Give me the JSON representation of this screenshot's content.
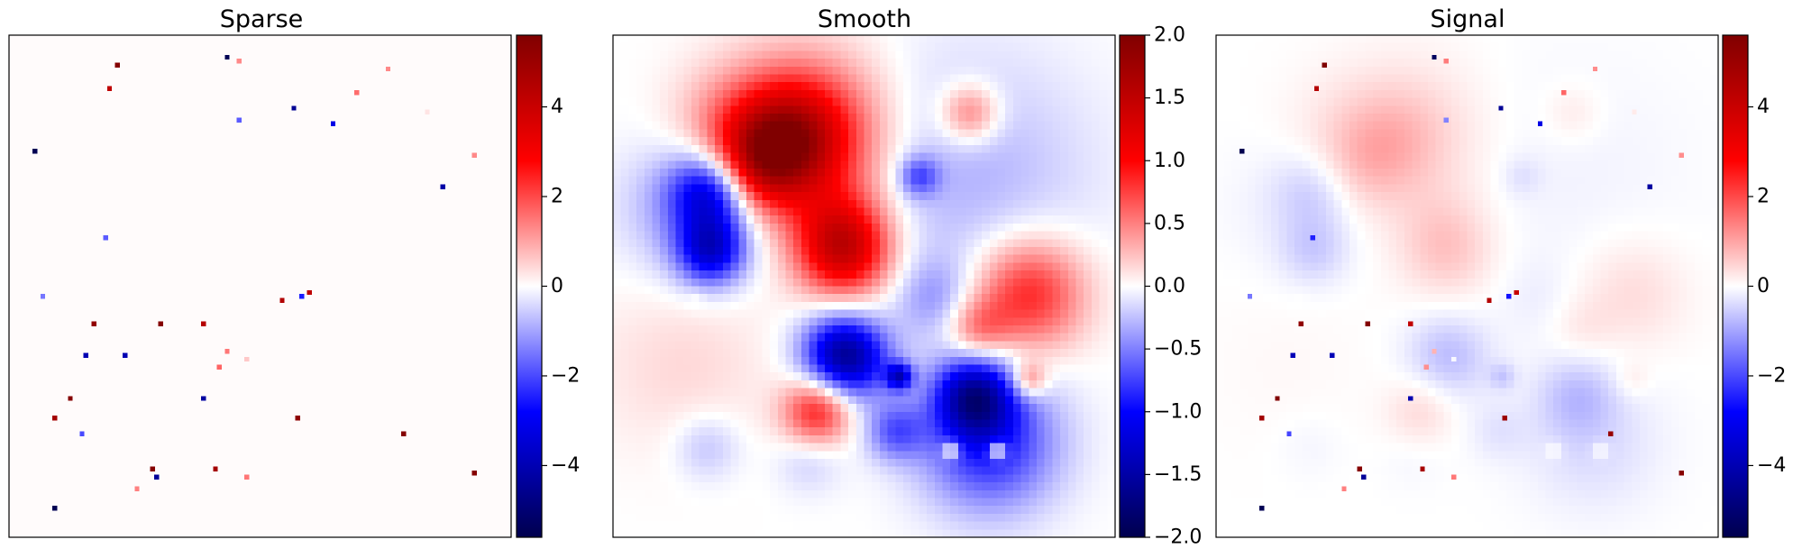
{
  "chart_data": [
    {
      "type": "heatmap",
      "title": "Sparse",
      "colormap": "seismic",
      "clim": [
        -5.6,
        5.6
      ],
      "colorbar_ticks": [
        4,
        2,
        0,
        -2,
        -4
      ],
      "colorbar_tick_labels": [
        "4",
        "2",
        "0",
        "−2",
        "−4"
      ],
      "grid_size": 64,
      "background_value": 0.04,
      "points": [
        {
          "x": 14,
          "y": 4,
          "v": 5.5
        },
        {
          "x": 28,
          "y": 3,
          "v": -5.5
        },
        {
          "x": 29.5,
          "y": 3.5,
          "v": 1.3
        },
        {
          "x": 13,
          "y": 7,
          "v": 4.2
        },
        {
          "x": 48.5,
          "y": 4.5,
          "v": 1.3
        },
        {
          "x": 44.5,
          "y": 7.5,
          "v": 1.6
        },
        {
          "x": 36.5,
          "y": 9.5,
          "v": -4.5
        },
        {
          "x": 29.5,
          "y": 11,
          "v": -1.8
        },
        {
          "x": 41.5,
          "y": 11.5,
          "v": -3.2
        },
        {
          "x": 53.5,
          "y": 10,
          "v": 0.3
        },
        {
          "x": 3.5,
          "y": 15,
          "v": -5.5
        },
        {
          "x": 59.5,
          "y": 15.5,
          "v": 1.3
        },
        {
          "x": 55.5,
          "y": 19.5,
          "v": -4.2
        },
        {
          "x": 12.5,
          "y": 26,
          "v": -1.8
        },
        {
          "x": 4.5,
          "y": 33.5,
          "v": -1.5
        },
        {
          "x": 35,
          "y": 34,
          "v": 4.5
        },
        {
          "x": 37.5,
          "y": 33.5,
          "v": -2.5
        },
        {
          "x": 38.5,
          "y": 33,
          "v": 4.2
        },
        {
          "x": 11,
          "y": 37,
          "v": 5.2
        },
        {
          "x": 19.5,
          "y": 37,
          "v": 5.5
        },
        {
          "x": 25,
          "y": 37,
          "v": 4.4
        },
        {
          "x": 10,
          "y": 41,
          "v": -4.0
        },
        {
          "x": 15,
          "y": 41,
          "v": -4.0
        },
        {
          "x": 28,
          "y": 40.5,
          "v": 1.5
        },
        {
          "x": 30.5,
          "y": 41.5,
          "v": 0.6
        },
        {
          "x": 27,
          "y": 42.5,
          "v": 1.7
        },
        {
          "x": 8,
          "y": 46.5,
          "v": 5.5
        },
        {
          "x": 25,
          "y": 46.5,
          "v": -4.3
        },
        {
          "x": 6,
          "y": 49,
          "v": 4.8
        },
        {
          "x": 37,
          "y": 49,
          "v": 5.3
        },
        {
          "x": 50.5,
          "y": 51,
          "v": 5.5
        },
        {
          "x": 9.5,
          "y": 51,
          "v": -2.0
        },
        {
          "x": 18.5,
          "y": 55.5,
          "v": 5.5
        },
        {
          "x": 26.5,
          "y": 55.5,
          "v": 4.8
        },
        {
          "x": 59.5,
          "y": 56,
          "v": 5.5
        },
        {
          "x": 19,
          "y": 56.5,
          "v": -4.4
        },
        {
          "x": 30.5,
          "y": 56.5,
          "v": 1.5
        },
        {
          "x": 16.5,
          "y": 58,
          "v": 1.4
        },
        {
          "x": 6,
          "y": 60.5,
          "v": -5.5
        }
      ]
    },
    {
      "type": "heatmap",
      "title": "Smooth",
      "colormap": "seismic",
      "clim": [
        -2,
        2
      ],
      "colorbar_ticks": [
        2.0,
        1.5,
        1.0,
        0.5,
        0.0,
        -0.5,
        -1.0,
        -1.5,
        -2.0
      ],
      "colorbar_tick_labels": [
        "2.0",
        "1.5",
        "1.0",
        "0.5",
        "0.0",
        "−0.5",
        "−1.0",
        "−1.5",
        "−2.0"
      ],
      "grid_size": 64,
      "blobs": [
        {
          "x": 24.5,
          "y": 13,
          "a": 1.1,
          "s": 7
        },
        {
          "x": 22,
          "y": 13.5,
          "a": 0.9,
          "s": 4.5
        },
        {
          "x": 18,
          "y": 17,
          "a": 0.8,
          "s": 4
        },
        {
          "x": 14.5,
          "y": 11.5,
          "a": 0.3,
          "s": 5
        },
        {
          "x": 29.5,
          "y": 27.5,
          "a": 1.3,
          "s": 4.2
        },
        {
          "x": 28.5,
          "y": 24,
          "a": 0.3,
          "s": 4
        },
        {
          "x": 45.5,
          "y": 10,
          "a": 0.6,
          "s": 2.6
        },
        {
          "x": 53,
          "y": 33,
          "a": 0.9,
          "s": 5
        },
        {
          "x": 46.5,
          "y": 37.5,
          "a": 0.5,
          "s": 2.8
        },
        {
          "x": 26,
          "y": 48,
          "a": 0.9,
          "s": 3
        },
        {
          "x": 9,
          "y": 42,
          "a": 0.15,
          "s": 8
        },
        {
          "x": 53,
          "y": 44,
          "a": 0.6,
          "s": 1.6
        },
        {
          "x": 12.5,
          "y": 20,
          "a": -1.1,
          "s": 3.5
        },
        {
          "x": 12.5,
          "y": 27.5,
          "a": -1.1,
          "s": 3
        },
        {
          "x": 10,
          "y": 22,
          "a": -0.4,
          "s": 6
        },
        {
          "x": 39,
          "y": 18,
          "a": -0.6,
          "s": 1.8
        },
        {
          "x": 45,
          "y": 18,
          "a": -0.3,
          "s": 11
        },
        {
          "x": 41,
          "y": 33.5,
          "a": -0.35,
          "s": 3.5
        },
        {
          "x": 29,
          "y": 40.5,
          "a": -1.2,
          "s": 3.5
        },
        {
          "x": 31.5,
          "y": 42,
          "a": -0.5,
          "s": 3.5
        },
        {
          "x": 36.5,
          "y": 43.5,
          "a": -1.1,
          "s": 1.2
        },
        {
          "x": 46,
          "y": 46,
          "a": -1.3,
          "s": 3.5
        },
        {
          "x": 48,
          "y": 52,
          "a": -0.9,
          "s": 6
        },
        {
          "x": 36,
          "y": 50.5,
          "a": -0.6,
          "s": 2.6
        },
        {
          "x": 12,
          "y": 52.5,
          "a": -0.25,
          "s": 3
        },
        {
          "x": 25,
          "y": 54,
          "a": -0.2,
          "s": 3
        }
      ],
      "holes": [
        {
          "x": 43,
          "y": 53
        },
        {
          "x": 49,
          "y": 53
        },
        {
          "x": 10.5,
          "y": 34
        }
      ]
    },
    {
      "type": "heatmap",
      "title": "Signal",
      "colormap": "seismic",
      "clim": [
        -5.6,
        5.6
      ],
      "colorbar_ticks": [
        4,
        2,
        0,
        -2,
        -4
      ],
      "colorbar_tick_labels": [
        "4",
        "2",
        "0",
        "−2",
        "−4"
      ],
      "grid_size": 64,
      "composition": "sum of Sparse and Smooth"
    }
  ]
}
